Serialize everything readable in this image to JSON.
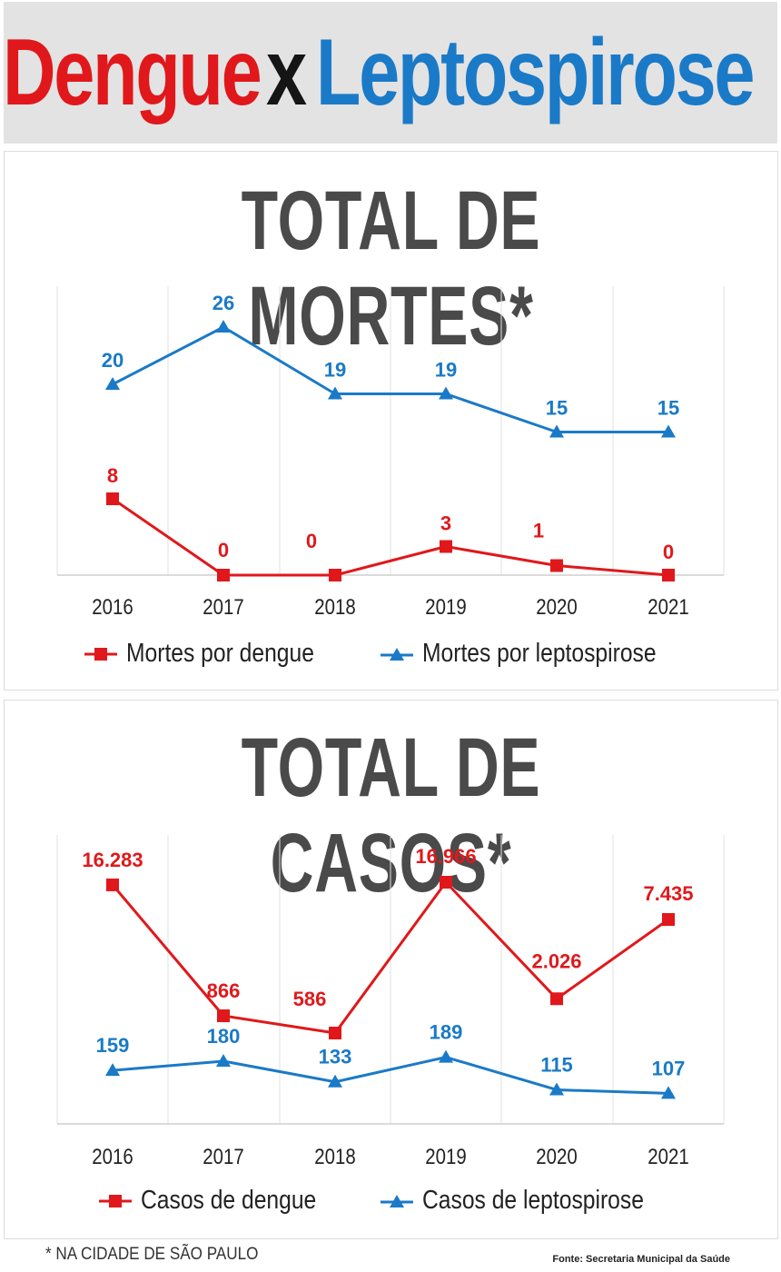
{
  "header": {
    "title_part1": "Dengue",
    "title_part2": "x",
    "title_part3": "Leptospirose"
  },
  "colors": {
    "dengue": "#e0181b",
    "leptospirose": "#1a7ac7"
  },
  "chart_data": [
    {
      "type": "line",
      "title": "TOTAL DE MORTES*",
      "categories": [
        "2016",
        "2017",
        "2018",
        "2019",
        "2020",
        "2021"
      ],
      "series": [
        {
          "name": "Mortes por dengue",
          "values": [
            8,
            0,
            0,
            3,
            1,
            0
          ],
          "labels": [
            "8",
            "0",
            "0",
            "3",
            "1",
            "0"
          ],
          "color": "#e0181b",
          "marker": "square"
        },
        {
          "name": "Mortes por leptospirose",
          "values": [
            20,
            26,
            19,
            19,
            15,
            15
          ],
          "labels": [
            "20",
            "26",
            "19",
            "19",
            "15",
            "15"
          ],
          "color": "#1a7ac7",
          "marker": "triangle"
        }
      ],
      "ylim": [
        0,
        30
      ],
      "grid": "vertical",
      "legend": "bottom-center"
    },
    {
      "type": "line",
      "title": "TOTAL DE CASOS*",
      "categories": [
        "2016",
        "2017",
        "2018",
        "2019",
        "2020",
        "2021"
      ],
      "series": [
        {
          "name": "Casos de dengue",
          "values": [
            16283,
            866,
            586,
            16966,
            2026,
            7435
          ],
          "labels": [
            "16.283",
            "866",
            "586",
            "16.966",
            "2.026",
            "7.435"
          ],
          "color": "#e0181b",
          "marker": "square"
        },
        {
          "name": "Casos de leptospirose",
          "values": [
            159,
            180,
            133,
            189,
            115,
            107
          ],
          "labels": [
            "159",
            "180",
            "133",
            "189",
            "115",
            "107"
          ],
          "color": "#1a7ac7",
          "marker": "triangle"
        }
      ],
      "scale": "non-linear",
      "grid": "vertical",
      "legend": "bottom-center"
    }
  ],
  "footnote": "* NA CIDADE DE SÃO PAULO",
  "source": "Fonte: Secretaria Municipal da Saúde"
}
